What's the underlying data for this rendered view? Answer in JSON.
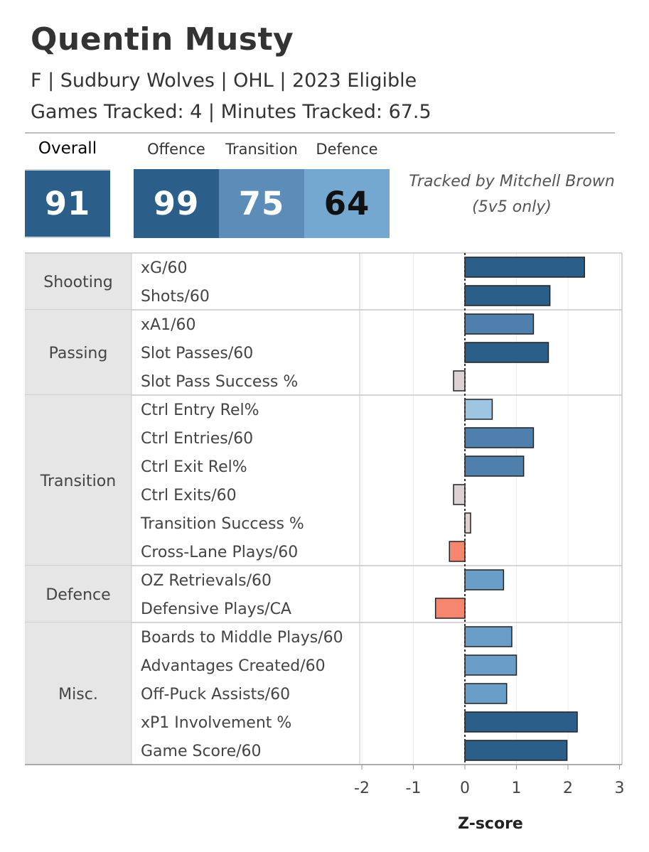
{
  "player": {
    "name": "Quentin Musty",
    "subtitle": "F | Sudbury Wolves | OHL | 2023 Eligible",
    "tracking": "Games Tracked: 4 | Minutes Tracked: 67.5"
  },
  "scores": {
    "overall_label": "Overall",
    "overall_value": "91",
    "offence_label": "Offence",
    "offence_value": "99",
    "transition_label": "Transition",
    "transition_value": "75",
    "defence_label": "Defence",
    "defence_value": "64"
  },
  "credit": {
    "line1": "Tracked by Mitchell Brown",
    "line2": "(5v5 only)"
  },
  "colors": {
    "dark_blue": "#2c5e8a",
    "mid_blue": "#4e7fad",
    "light_blue": "#6a9dc8",
    "pale_blue": "#9ec5e2",
    "neutral": "#ddd1d1",
    "salmon": "#f6866f",
    "group_bg": "#e6e6e6"
  },
  "chart_data": {
    "type": "bar",
    "orientation": "horizontal",
    "xlabel": "Z-score",
    "xlim": [
      -2,
      3
    ],
    "xticks": [
      "-2",
      "-1",
      "0",
      "1",
      "2",
      "3"
    ],
    "groups": [
      {
        "name": "Shooting",
        "metrics": [
          {
            "label": "xG/60",
            "value": 2.32,
            "color": "#2c5e8a"
          },
          {
            "label": "Shots/60",
            "value": 1.65,
            "color": "#2c5e8a"
          }
        ]
      },
      {
        "name": "Passing",
        "metrics": [
          {
            "label": "xA1/60",
            "value": 1.33,
            "color": "#4e7fad"
          },
          {
            "label": "Slot Passes/60",
            "value": 1.62,
            "color": "#2c5e8a"
          },
          {
            "label": "Slot Pass Success %",
            "value": -0.22,
            "color": "#ddd1d1"
          }
        ]
      },
      {
        "name": "Transition",
        "metrics": [
          {
            "label": "Ctrl Entry Rel%",
            "value": 0.53,
            "color": "#9ec5e2"
          },
          {
            "label": "Ctrl Entries/60",
            "value": 1.33,
            "color": "#4e7fad"
          },
          {
            "label": "Ctrl Exit Rel%",
            "value": 1.14,
            "color": "#4e7fad"
          },
          {
            "label": "Ctrl Exits/60",
            "value": -0.22,
            "color": "#ddd1d1"
          },
          {
            "label": "Transition Success %",
            "value": 0.11,
            "color": "#ddd1d1"
          },
          {
            "label": "Cross-Lane Plays/60",
            "value": -0.3,
            "color": "#f6866f"
          }
        ]
      },
      {
        "name": "Defence",
        "metrics": [
          {
            "label": "OZ Retrievals/60",
            "value": 0.75,
            "color": "#6a9dc8"
          },
          {
            "label": "Defensive Plays/CA",
            "value": -0.57,
            "color": "#f6866f"
          }
        ]
      },
      {
        "name": "Misc.",
        "metrics": [
          {
            "label": "Boards to Middle Plays/60",
            "value": 0.91,
            "color": "#6a9dc8"
          },
          {
            "label": "Advantages Created/60",
            "value": 1.0,
            "color": "#6a9dc8"
          },
          {
            "label": "Off-Puck Assists/60",
            "value": 0.81,
            "color": "#6a9dc8"
          },
          {
            "label": "xP1 Involvement %",
            "value": 2.18,
            "color": "#2c5e8a"
          },
          {
            "label": "Game Score/60",
            "value": 1.98,
            "color": "#2c5e8a"
          }
        ]
      }
    ]
  }
}
